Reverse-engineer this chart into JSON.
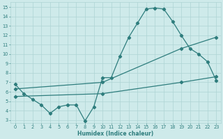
{
  "line1_x": [
    0,
    1,
    2,
    3,
    4,
    5,
    6,
    7,
    8,
    9,
    10,
    11,
    12,
    13,
    14,
    15,
    16,
    17,
    18,
    19,
    20,
    21,
    22,
    23
  ],
  "line1_y": [
    6.8,
    5.8,
    5.2,
    4.6,
    3.7,
    4.4,
    4.6,
    4.6,
    2.9,
    4.4,
    7.5,
    7.5,
    9.8,
    11.8,
    13.3,
    14.8,
    14.9,
    14.8,
    13.5,
    12.0,
    10.6,
    10.0,
    9.2,
    7.2
  ],
  "line2_x": [
    0,
    10,
    19,
    23
  ],
  "line2_y": [
    6.3,
    7.0,
    10.6,
    11.8
  ],
  "line3_x": [
    0,
    10,
    19,
    23
  ],
  "line3_y": [
    5.5,
    5.8,
    7.0,
    7.6
  ],
  "line_color": "#2e7d7d",
  "bg_color": "#ceeaea",
  "grid_color": "#aed4d4",
  "xlabel": "Humidex (Indice chaleur)",
  "xlim": [
    -0.5,
    23.5
  ],
  "ylim": [
    2.7,
    15.5
  ],
  "yticks": [
    3,
    4,
    5,
    6,
    7,
    8,
    9,
    10,
    11,
    12,
    13,
    14,
    15
  ],
  "xticks": [
    0,
    1,
    2,
    3,
    4,
    5,
    6,
    7,
    8,
    9,
    10,
    11,
    12,
    13,
    14,
    15,
    16,
    17,
    18,
    19,
    20,
    21,
    22,
    23
  ],
  "marker": "D",
  "marker_size": 2.2,
  "linewidth": 0.9,
  "xlabel_fontsize": 5.5,
  "tick_fontsize": 4.8
}
